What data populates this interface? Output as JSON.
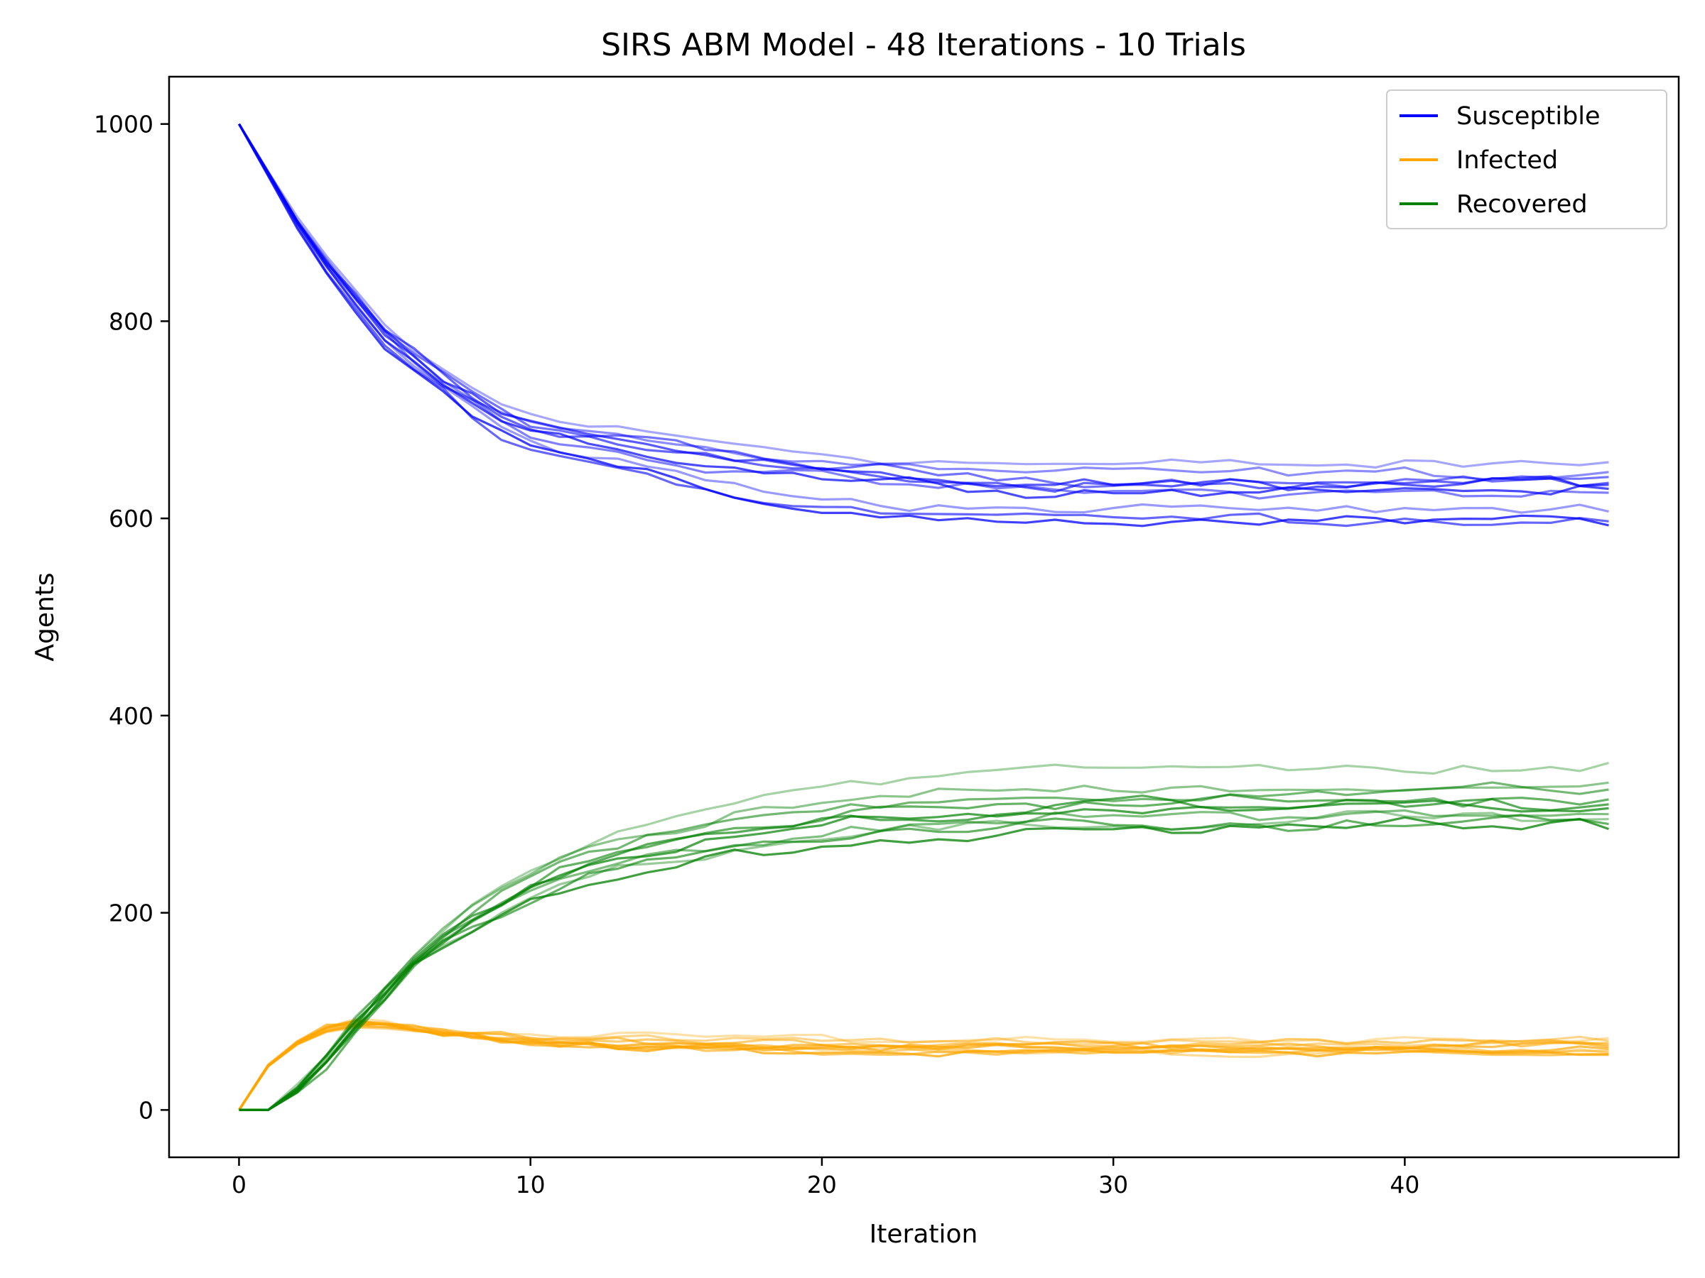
{
  "chart_data": {
    "type": "line",
    "title": "SIRS ABM Model - 48 Iterations - 10 Trials",
    "xlabel": "Iteration",
    "ylabel": "Agents",
    "xlim": [
      -2.4,
      49.4
    ],
    "ylim": [
      -48,
      1048
    ],
    "x_ticks": [
      0,
      10,
      20,
      30,
      40
    ],
    "y_ticks": [
      0,
      200,
      400,
      600,
      800,
      1000
    ],
    "x": [
      0,
      1,
      2,
      3,
      4,
      5,
      6,
      7,
      8,
      9,
      10,
      11,
      12,
      13,
      14,
      15,
      16,
      17,
      18,
      19,
      20,
      21,
      22,
      23,
      24,
      25,
      26,
      27,
      28,
      29,
      30,
      31,
      32,
      33,
      34,
      35,
      36,
      37,
      38,
      39,
      40,
      41,
      42,
      43,
      44,
      45,
      46,
      47
    ],
    "grid": false,
    "legend_position": "top-right",
    "trials": 10,
    "groups": [
      {
        "name": "Susceptible",
        "color": "#0000ff",
        "mean": [
          1000,
          950,
          900,
          858,
          820,
          785,
          760,
          738,
          718,
          700,
          688,
          681,
          676,
          670,
          664,
          658,
          652,
          648,
          644,
          641,
          638,
          636,
          634,
          632,
          630,
          629,
          628,
          627,
          626,
          626,
          625,
          625,
          625,
          625,
          625,
          625,
          625,
          625,
          625,
          625,
          625,
          625,
          625,
          625,
          625,
          625,
          625,
          625
        ],
        "final_values": [
          657,
          647,
          642,
          636,
          634,
          630,
          626,
          607,
          597,
          593
        ]
      },
      {
        "name": "Infected",
        "color": "#ffa500",
        "mean": [
          0,
          45,
          68,
          82,
          88,
          86,
          82,
          78,
          75,
          72,
          70,
          68,
          67,
          66,
          65,
          65,
          64,
          64,
          63,
          63,
          63,
          62,
          62,
          62,
          62,
          62,
          62,
          62,
          62,
          62,
          62,
          62,
          62,
          62,
          62,
          62,
          62,
          62,
          62,
          62,
          62,
          62,
          62,
          62,
          62,
          62,
          62,
          62
        ],
        "final_values": [
          73,
          70,
          68,
          66,
          64,
          62,
          60,
          58,
          57,
          56
        ]
      },
      {
        "name": "Recovered",
        "color": "#008000",
        "mean": [
          0,
          0,
          20,
          50,
          85,
          118,
          150,
          172,
          192,
          210,
          225,
          238,
          248,
          257,
          264,
          270,
          276,
          281,
          285,
          289,
          292,
          295,
          297,
          299,
          301,
          302,
          303,
          304,
          305,
          306,
          307,
          307,
          308,
          308,
          309,
          309,
          309,
          310,
          310,
          310,
          310,
          310,
          310,
          310,
          310,
          310,
          310,
          310
        ],
        "final_values": [
          352,
          332,
          325,
          315,
          310,
          306,
          300,
          295,
          290,
          285
        ]
      }
    ]
  }
}
